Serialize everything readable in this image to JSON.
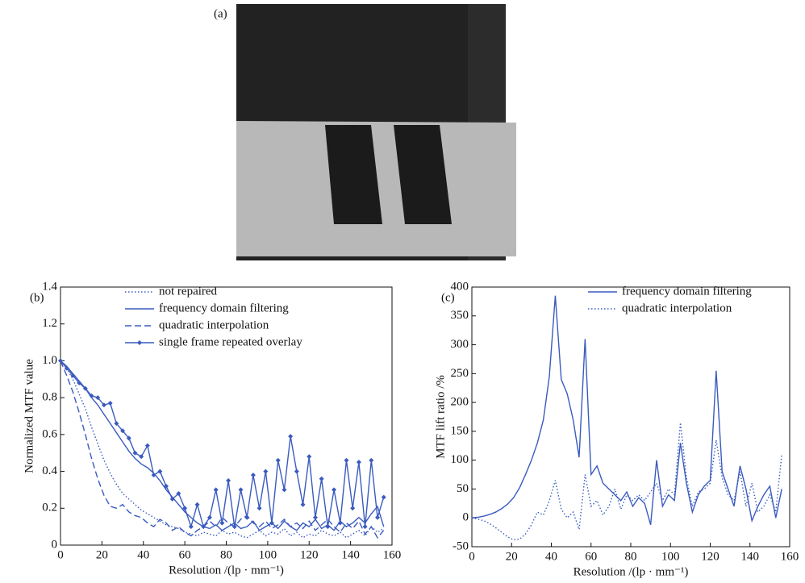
{
  "image": {
    "label": "(a)"
  },
  "chart_data": [
    {
      "type": "line",
      "panel_label": "(b)",
      "xlabel": "Resolution /(lp · mm⁻¹)",
      "ylabel": "Normalized MTF value",
      "x": [
        0,
        3,
        6,
        9,
        12,
        15,
        18,
        21,
        24,
        27,
        30,
        33,
        36,
        39,
        42,
        45,
        48,
        51,
        54,
        57,
        60,
        63,
        66,
        69,
        72,
        75,
        78,
        81,
        84,
        87,
        90,
        93,
        96,
        99,
        102,
        105,
        108,
        111,
        114,
        117,
        120,
        123,
        126,
        129,
        132,
        135,
        138,
        141,
        144,
        147,
        150,
        153,
        156
      ],
      "xlim": [
        0,
        160
      ],
      "xticks": [
        0,
        20,
        40,
        60,
        80,
        100,
        120,
        140,
        160
      ],
      "ylim": [
        0,
        1.4
      ],
      "yticks": [
        0,
        0.2,
        0.4,
        0.6,
        0.8,
        {
          "value": 1,
          "label": "1.0"
        },
        1.2,
        1.4
      ],
      "legend": "upper center",
      "series": [
        {
          "name": "not repaired",
          "color": "#3a5bbf",
          "style": "dotted",
          "marker": "none",
          "values": [
            1,
            0.96,
            0.9,
            0.82,
            0.74,
            0.64,
            0.55,
            0.46,
            0.39,
            0.33,
            0.28,
            0.25,
            0.22,
            0.19,
            0.17,
            0.15,
            0.13,
            0.11,
            0.1,
            0.09,
            0.07,
            0.06,
            0.05,
            0.07,
            0.06,
            0.05,
            0.08,
            0.06,
            0.07,
            0.05,
            0.04,
            0.06,
            0.08,
            0.05,
            0.07,
            0.06,
            0.09,
            0.05,
            0.07,
            0.04,
            0.06,
            0.05,
            0.08,
            0.06,
            0.05,
            0.07,
            0.04,
            0.06,
            0.08,
            0.05,
            0.1,
            0.07,
            0.09
          ]
        },
        {
          "name": "frequency domain filtering",
          "color": "#3a5bbf",
          "style": "solid",
          "marker": "none",
          "values": [
            1,
            0.97,
            0.93,
            0.89,
            0.85,
            0.8,
            0.76,
            0.71,
            0.66,
            0.61,
            0.56,
            0.51,
            0.47,
            0.44,
            0.42,
            0.39,
            0.35,
            0.3,
            0.26,
            0.22,
            0.18,
            0.15,
            0.12,
            0.1,
            0.09,
            0.11,
            0.08,
            0.1,
            0.12,
            0.09,
            0.1,
            0.13,
            0.08,
            0.1,
            0.12,
            0.09,
            0.13,
            0.1,
            0.08,
            0.12,
            0.1,
            0.14,
            0.09,
            0.11,
            0.08,
            0.13,
            0.1,
            0.12,
            0.15,
            0.12,
            0.17,
            0.21,
            0.1
          ]
        },
        {
          "name": "quadratic interpolation",
          "color": "#3a5bbf",
          "style": "dashed",
          "marker": "none",
          "values": [
            1,
            0.92,
            0.83,
            0.72,
            0.6,
            0.47,
            0.36,
            0.27,
            0.21,
            0.2,
            0.22,
            0.18,
            0.16,
            0.15,
            0.12,
            0.1,
            0.14,
            0.12,
            0.08,
            0.1,
            0.07,
            0.05,
            0.08,
            0.1,
            0.13,
            0.1,
            0.15,
            0.12,
            0.1,
            0.14,
            0.16,
            0.12,
            0.1,
            0.13,
            0.09,
            0.11,
            0.14,
            0.1,
            0.12,
            0.09,
            0.13,
            0.08,
            0.11,
            0.14,
            0.1,
            0.07,
            0.12,
            0.09,
            0.13,
            0.06,
            0.1,
            0.04,
            0.08
          ]
        },
        {
          "name": "single frame repeated overlay",
          "color": "#3a5bbf",
          "style": "solid",
          "marker": "diamond",
          "values": [
            1,
            0.96,
            0.92,
            0.88,
            0.85,
            0.81,
            0.8,
            0.76,
            0.77,
            0.66,
            0.62,
            0.58,
            0.5,
            0.48,
            0.54,
            0.38,
            0.4,
            0.32,
            0.25,
            0.28,
            0.2,
            0.1,
            0.22,
            0.1,
            0.15,
            0.3,
            0.12,
            0.35,
            0.1,
            0.3,
            0.15,
            0.38,
            0.2,
            0.4,
            0.12,
            0.46,
            0.3,
            0.59,
            0.4,
            0.22,
            0.48,
            0.15,
            0.36,
            0.1,
            0.3,
            0.12,
            0.46,
            0.2,
            0.45,
            0.1,
            0.46,
            0.15,
            0.26
          ]
        }
      ]
    },
    {
      "type": "line",
      "panel_label": "(c)",
      "xlabel": "Resolution /(lp · mm⁻¹)",
      "ylabel": "MTF lift ratio /%",
      "x": [
        0,
        3,
        6,
        9,
        12,
        15,
        18,
        21,
        24,
        27,
        30,
        33,
        36,
        39,
        42,
        45,
        48,
        51,
        54,
        57,
        60,
        63,
        66,
        69,
        72,
        75,
        78,
        81,
        84,
        87,
        90,
        93,
        96,
        99,
        102,
        105,
        108,
        111,
        114,
        117,
        120,
        123,
        126,
        129,
        132,
        135,
        138,
        141,
        144,
        147,
        150,
        153,
        156
      ],
      "xlim": [
        0,
        160
      ],
      "xticks": [
        0,
        20,
        40,
        60,
        80,
        100,
        120,
        140,
        160
      ],
      "ylim": [
        -50,
        400
      ],
      "yticks": [
        -50,
        0,
        50,
        100,
        150,
        200,
        250,
        300,
        350,
        400
      ],
      "legend": "upper right",
      "series": [
        {
          "name": "frequency domain filtering",
          "color": "#3a5bbf",
          "style": "solid",
          "marker": "none",
          "values": [
            0,
            1,
            3,
            6,
            10,
            16,
            24,
            35,
            52,
            75,
            100,
            130,
            170,
            245,
            385,
            240,
            215,
            170,
            105,
            310,
            75,
            90,
            60,
            50,
            40,
            30,
            45,
            20,
            35,
            25,
            -12,
            100,
            20,
            40,
            30,
            130,
            60,
            10,
            40,
            55,
            65,
            255,
            80,
            50,
            20,
            90,
            50,
            -5,
            20,
            40,
            55,
            0,
            50
          ]
        },
        {
          "name": "quadratic interpolation",
          "color": "#3a5bbf",
          "style": "dotted",
          "marker": "none",
          "values": [
            0,
            -2,
            -5,
            -10,
            -17,
            -25,
            -33,
            -38,
            -37,
            -28,
            -12,
            10,
            5,
            30,
            65,
            15,
            0,
            10,
            -20,
            75,
            20,
            30,
            5,
            20,
            50,
            15,
            40,
            30,
            40,
            30,
            45,
            60,
            30,
            50,
            40,
            165,
            70,
            20,
            45,
            50,
            60,
            135,
            70,
            40,
            30,
            80,
            20,
            60,
            10,
            20,
            40,
            10,
            110
          ]
        }
      ]
    }
  ]
}
